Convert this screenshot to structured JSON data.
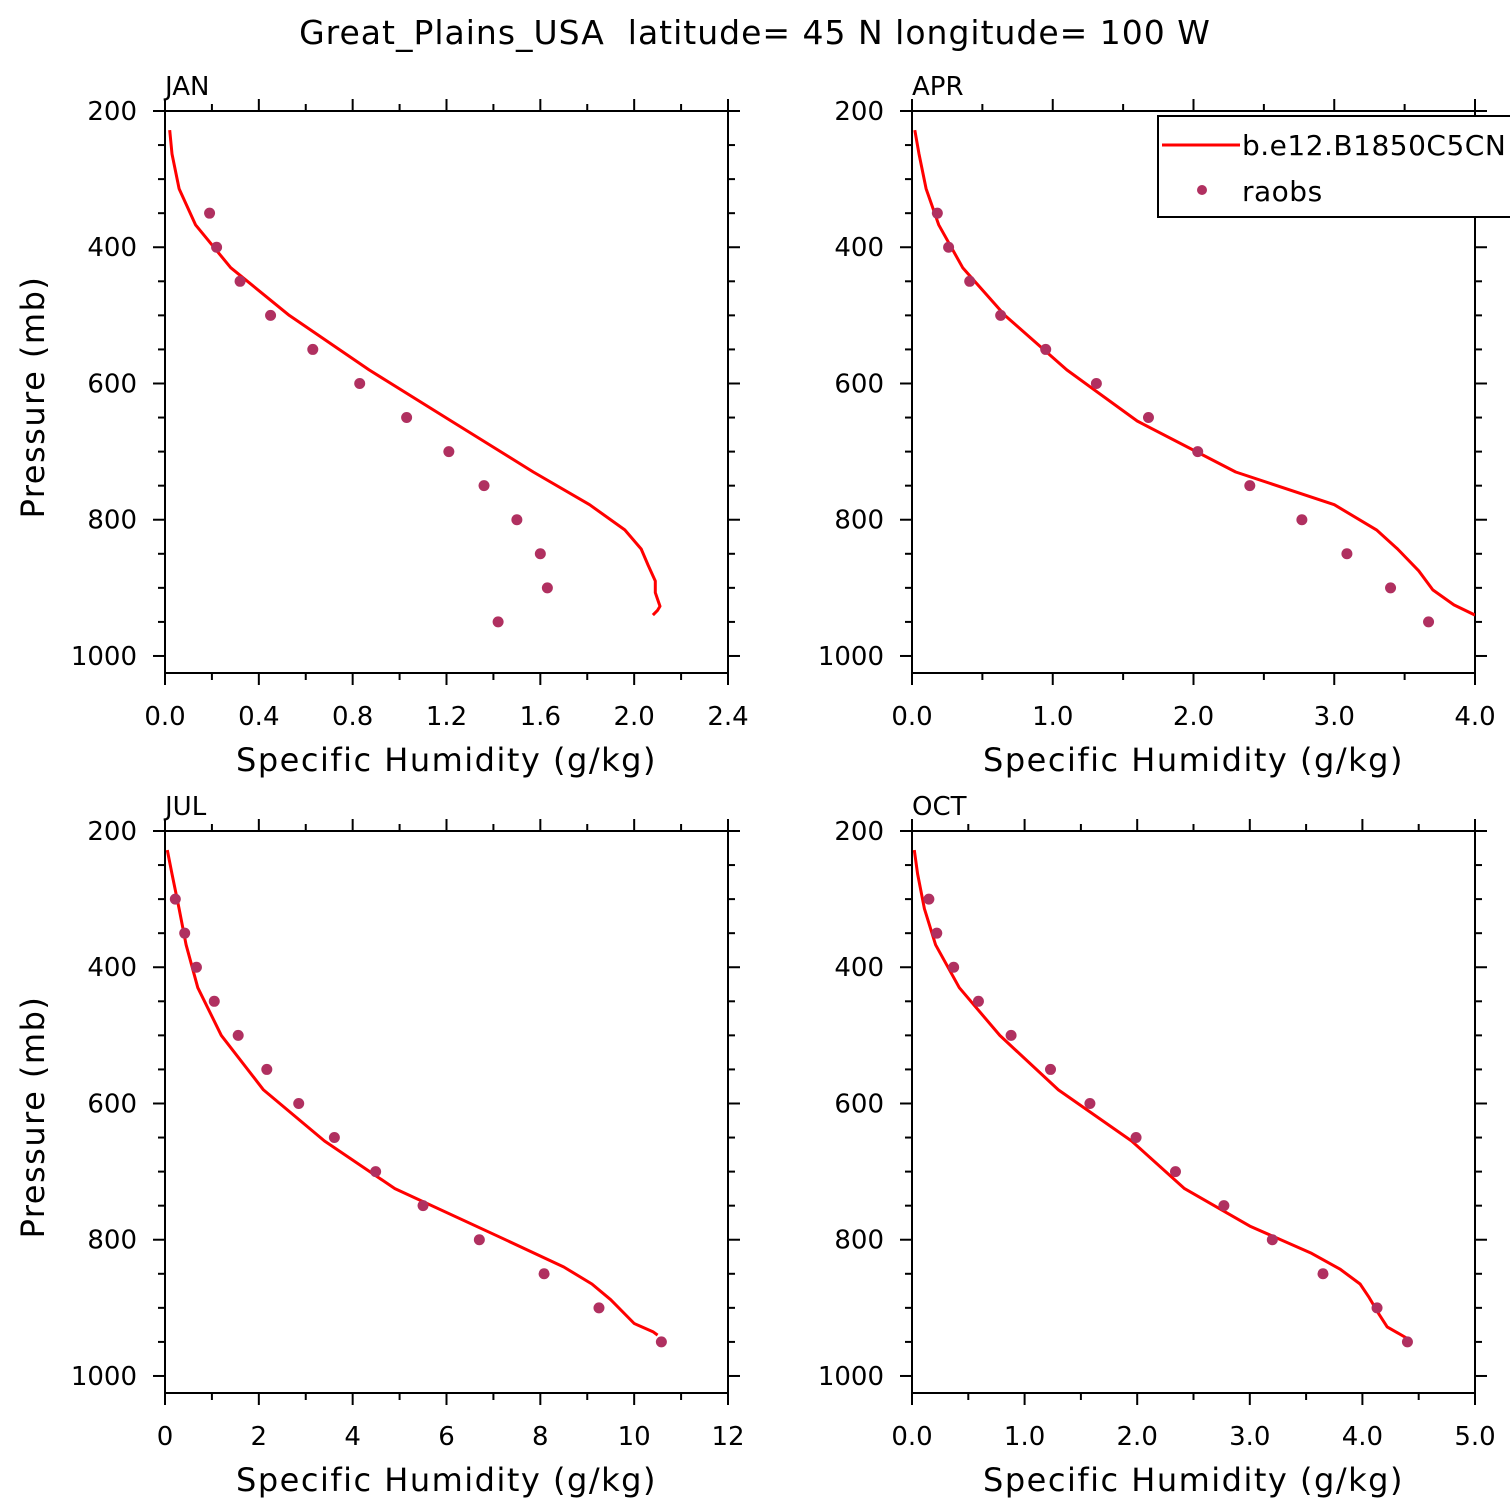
{
  "title": "Great_Plains_USA  latitude= 45 N longitude= 100 W",
  "legend": {
    "model_label": "b.e12.B1850C5CN",
    "obs_label": "raobs",
    "model_color": "#ff0000",
    "obs_color": "#b03060"
  },
  "chart_data": [
    {
      "type": "line",
      "panel": "JAN",
      "xlabel": "Specific Humidity (g/kg)",
      "ylabel": "Pressure (mb)",
      "xlim": [
        0,
        2.4
      ],
      "ylim": [
        1025,
        200
      ],
      "xticks": [
        0,
        0.4,
        0.8,
        1.2,
        1.6,
        2.0,
        2.4
      ],
      "xtick_labels": [
        "0.0",
        "0.4",
        "0.8",
        "1.2",
        "1.6",
        "2.0",
        "2.4"
      ],
      "yticks": [
        200,
        400,
        600,
        800,
        1000
      ],
      "ytick_labels": [
        "200",
        "400",
        "600",
        "800",
        "1000"
      ],
      "series": [
        {
          "name": "b.e12.B1850C5CN",
          "x": [
            0.02,
            0.03,
            0.06,
            0.13,
            0.28,
            0.53,
            0.87,
            1.22,
            1.57,
            1.81,
            1.96,
            2.03,
            2.06,
            2.09,
            2.09,
            2.1,
            2.11,
            2.1,
            2.08
          ],
          "y": [
            228,
            263,
            314,
            367,
            430,
            500,
            580,
            655,
            730,
            778,
            815,
            843,
            867,
            890,
            907,
            917,
            927,
            933,
            940
          ]
        },
        {
          "name": "raobs",
          "x": [
            0.19,
            0.22,
            0.32,
            0.45,
            0.63,
            0.83,
            1.03,
            1.21,
            1.36,
            1.5,
            1.6,
            1.63,
            1.42
          ],
          "y": [
            350,
            400,
            450,
            500,
            550,
            600,
            650,
            700,
            750,
            800,
            850,
            900,
            950
          ]
        }
      ]
    },
    {
      "type": "line",
      "panel": "APR",
      "xlabel": "Specific Humidity (g/kg)",
      "ylabel": "Pressure (mb)",
      "xlim": [
        0,
        4.0
      ],
      "ylim": [
        1025,
        200
      ],
      "xticks": [
        0,
        1,
        2,
        3,
        4
      ],
      "xtick_labels": [
        "0.0",
        "1.0",
        "2.0",
        "3.0",
        "4.0"
      ],
      "yticks": [
        200,
        400,
        600,
        800,
        1000
      ],
      "ytick_labels": [
        "200",
        "400",
        "600",
        "800",
        "1000"
      ],
      "series": [
        {
          "name": "b.e12.B1850C5CN",
          "x": [
            0.02,
            0.05,
            0.1,
            0.19,
            0.36,
            0.66,
            1.1,
            1.6,
            2.3,
            3.0,
            3.3,
            3.45,
            3.6,
            3.7,
            3.85,
            4.0
          ],
          "y": [
            228,
            263,
            314,
            367,
            430,
            500,
            580,
            655,
            730,
            778,
            815,
            843,
            875,
            903,
            925,
            940
          ]
        },
        {
          "name": "raobs",
          "x": [
            0.18,
            0.26,
            0.41,
            0.63,
            0.95,
            1.31,
            1.68,
            2.03,
            2.4,
            2.77,
            3.09,
            3.4,
            3.67
          ],
          "y": [
            350,
            400,
            450,
            500,
            550,
            600,
            650,
            700,
            750,
            800,
            850,
            900,
            950
          ]
        }
      ]
    },
    {
      "type": "line",
      "panel": "JUL",
      "xlabel": "Specific Humidity (g/kg)",
      "ylabel": "Pressure (mb)",
      "xlim": [
        0,
        12
      ],
      "ylim": [
        1025,
        200
      ],
      "xticks": [
        0,
        2,
        4,
        6,
        8,
        10,
        12
      ],
      "xtick_labels": [
        "0",
        "2",
        "4",
        "6",
        "8",
        "10",
        "12"
      ],
      "yticks": [
        200,
        400,
        600,
        800,
        1000
      ],
      "ytick_labels": [
        "200",
        "400",
        "600",
        "800",
        "1000"
      ],
      "series": [
        {
          "name": "b.e12.B1850C5CN",
          "x": [
            0.05,
            0.15,
            0.3,
            0.45,
            0.7,
            1.2,
            2.1,
            3.4,
            4.9,
            7.1,
            8.5,
            9.1,
            9.5,
            10.0,
            10.4,
            10.5
          ],
          "y": [
            228,
            263,
            314,
            367,
            430,
            500,
            580,
            655,
            725,
            795,
            840,
            865,
            888,
            923,
            935,
            940
          ]
        },
        {
          "name": "raobs",
          "x": [
            0.22,
            0.42,
            0.67,
            1.05,
            1.56,
            2.17,
            2.85,
            3.61,
            4.49,
            5.5,
            6.7,
            8.08,
            9.25,
            10.58
          ],
          "y": [
            300,
            350,
            400,
            450,
            500,
            550,
            600,
            650,
            700,
            750,
            800,
            850,
            900,
            950
          ]
        }
      ]
    },
    {
      "type": "line",
      "panel": "OCT",
      "xlabel": "Specific Humidity (g/kg)",
      "ylabel": "Pressure (mb)",
      "xlim": [
        0,
        5.0
      ],
      "ylim": [
        1025,
        200
      ],
      "xticks": [
        0,
        1,
        2,
        3,
        4,
        5
      ],
      "xtick_labels": [
        "0.0",
        "1.0",
        "2.0",
        "3.0",
        "4.0",
        "5.0"
      ],
      "yticks": [
        200,
        400,
        600,
        800,
        1000
      ],
      "ytick_labels": [
        "200",
        "400",
        "600",
        "800",
        "1000"
      ],
      "series": [
        {
          "name": "b.e12.B1850C5CN",
          "x": [
            0.02,
            0.05,
            0.11,
            0.21,
            0.42,
            0.78,
            1.3,
            1.95,
            2.42,
            3.0,
            3.55,
            3.8,
            3.98,
            4.06,
            4.15,
            4.22,
            4.4
          ],
          "y": [
            228,
            263,
            314,
            367,
            430,
            500,
            580,
            655,
            725,
            780,
            820,
            843,
            865,
            885,
            910,
            928,
            945
          ]
        },
        {
          "name": "raobs",
          "x": [
            0.15,
            0.22,
            0.37,
            0.59,
            0.88,
            1.23,
            1.58,
            1.99,
            2.34,
            2.77,
            3.2,
            3.65,
            4.13,
            4.4
          ],
          "y": [
            300,
            350,
            400,
            450,
            500,
            550,
            600,
            650,
            700,
            750,
            800,
            850,
            900,
            950
          ]
        }
      ]
    }
  ]
}
